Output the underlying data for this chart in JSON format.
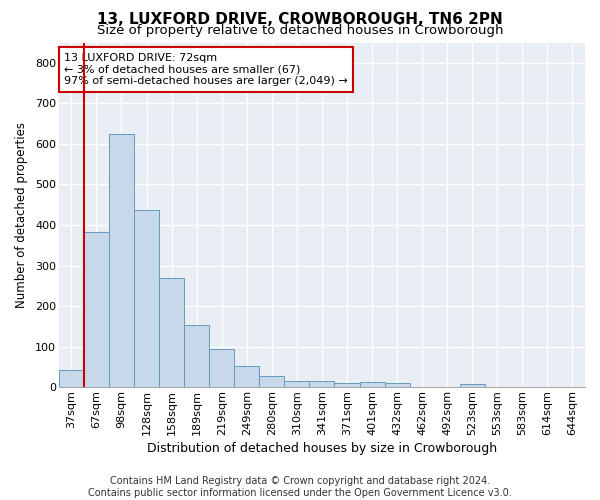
{
  "title": "13, LUXFORD DRIVE, CROWBOROUGH, TN6 2PN",
  "subtitle": "Size of property relative to detached houses in Crowborough",
  "xlabel": "Distribution of detached houses by size in Crowborough",
  "ylabel": "Number of detached properties",
  "categories": [
    "37sqm",
    "67sqm",
    "98sqm",
    "128sqm",
    "158sqm",
    "189sqm",
    "219sqm",
    "249sqm",
    "280sqm",
    "310sqm",
    "341sqm",
    "371sqm",
    "401sqm",
    "432sqm",
    "462sqm",
    "492sqm",
    "523sqm",
    "553sqm",
    "583sqm",
    "614sqm",
    "644sqm"
  ],
  "values": [
    43,
    383,
    625,
    437,
    268,
    153,
    93,
    51,
    28,
    15,
    15,
    10,
    13,
    10,
    0,
    0,
    7,
    0,
    0,
    0,
    0
  ],
  "bar_color": "#c8d8eb",
  "bar_edgecolor": "#6699bb",
  "vline_color": "#cc0000",
  "vline_x": 0.5,
  "annotation_text_line1": "13 LUXFORD DRIVE: 72sqm",
  "annotation_text_line2": "← 3% of detached houses are smaller (67)",
  "annotation_text_line3": "97% of semi-detached houses are larger (2,049) →",
  "annotation_box_color": "#ffffff",
  "annotation_box_edgecolor": "#cc0000",
  "ylim": [
    0,
    850
  ],
  "yticks": [
    0,
    100,
    200,
    300,
    400,
    500,
    600,
    700,
    800
  ],
  "background_color": "#e8eef4",
  "grid_color": "#ffffff",
  "fig_background": "#ffffff",
  "footer_line1": "Contains HM Land Registry data © Crown copyright and database right 2024.",
  "footer_line2": "Contains public sector information licensed under the Open Government Licence v3.0.",
  "title_fontsize": 11,
  "subtitle_fontsize": 9.5,
  "xlabel_fontsize": 9,
  "ylabel_fontsize": 8.5,
  "tick_fontsize": 8,
  "footer_fontsize": 7,
  "annotation_fontsize": 8
}
